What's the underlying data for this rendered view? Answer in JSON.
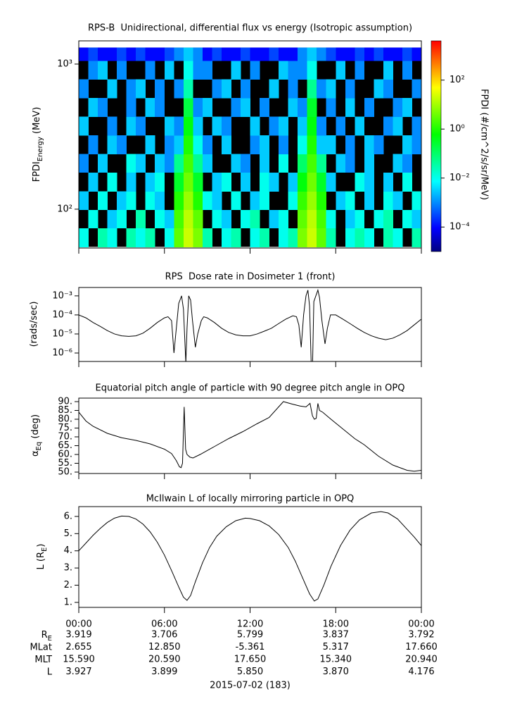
{
  "chart_data": [
    {
      "type": "heatmap",
      "title": "RPS-B  Unidirectional, differential flux vs energy (Isotropic assumption)",
      "ylabel": [
        {
          "text": "FPDI"
        },
        {
          "text": "Energy",
          "sub": true
        },
        {
          "text": " (MeV)"
        }
      ],
      "log_y": true,
      "xlim": [
        0,
        1440
      ],
      "ylim": [
        54,
        1445
      ],
      "yticks": [
        {
          "value": 100,
          "label": "10²"
        },
        {
          "value": 1000,
          "label": "10³"
        }
      ],
      "time_bins": [
        0,
        40,
        80,
        120,
        160,
        200,
        240,
        280,
        320,
        360,
        400,
        440,
        480,
        520,
        560,
        600,
        640,
        680,
        720,
        760,
        800,
        840,
        880,
        920,
        960,
        1000,
        1040,
        1080,
        1120,
        1160,
        1200,
        1240,
        1280,
        1320,
        1360,
        1400,
        1440
      ],
      "energy_bins": [
        55,
        74,
        99,
        133,
        179,
        240,
        323,
        434,
        584,
        785,
        1056,
        1300
      ],
      "z": [
        [
          0.01,
          null,
          0.03,
          0.01,
          null,
          0.03,
          0.01,
          0.03,
          null,
          0.01,
          3,
          20,
          5,
          0.03,
          null,
          0.01,
          0.03,
          null,
          0.01,
          0.03,
          null,
          0.01,
          0.03,
          5,
          20,
          3,
          0.03,
          null,
          0.01,
          0.03,
          0.01,
          null,
          0.03,
          0.01,
          null,
          0.03
        ],
        [
          null,
          0.01,
          null,
          0.003,
          0.01,
          null,
          0.03,
          null,
          0.01,
          0.003,
          2,
          15,
          3,
          null,
          0.01,
          0.003,
          null,
          0.01,
          0.03,
          null,
          0.003,
          0.01,
          null,
          3,
          15,
          2,
          0.01,
          null,
          0.003,
          0.01,
          null,
          0.01,
          0.03,
          null,
          0.01,
          0.003
        ],
        [
          0.003,
          null,
          0.01,
          null,
          0.003,
          0.01,
          null,
          0.01,
          0.003,
          null,
          1,
          8,
          1,
          0.01,
          0.003,
          null,
          0.01,
          null,
          0.003,
          0.01,
          null,
          null,
          0.01,
          1.5,
          8,
          1,
          null,
          0.003,
          0.01,
          null,
          0.003,
          null,
          0.01,
          0.003,
          null,
          0.01
        ],
        [
          null,
          0.003,
          null,
          0.01,
          null,
          0.003,
          null,
          0.003,
          0.01,
          null,
          0.3,
          4,
          0.3,
          null,
          0.003,
          0.01,
          null,
          0.003,
          null,
          0.01,
          0.003,
          null,
          0.003,
          0.5,
          4,
          0.3,
          0.003,
          null,
          null,
          0.01,
          0.003,
          null,
          0.003,
          null,
          0.01,
          null
        ],
        [
          0.001,
          null,
          0.003,
          null,
          null,
          0.01,
          0.003,
          null,
          0.003,
          0.001,
          0.05,
          2,
          0.05,
          0.003,
          null,
          null,
          0.003,
          0.001,
          null,
          0.003,
          null,
          0.01,
          null,
          0.1,
          2,
          0.05,
          null,
          0.003,
          0.001,
          null,
          0.003,
          null,
          null,
          0.003,
          0.001,
          null
        ],
        [
          null,
          0.001,
          null,
          0.003,
          0.001,
          null,
          null,
          0.003,
          null,
          0.001,
          0.003,
          1,
          0.01,
          0.001,
          null,
          0.003,
          null,
          null,
          0.001,
          0.003,
          null,
          0.001,
          null,
          0.01,
          1,
          0.003,
          0.003,
          null,
          0.001,
          null,
          0.003,
          0.001,
          null,
          null,
          0.003,
          0.001
        ],
        [
          0.003,
          null,
          null,
          0.001,
          null,
          0.003,
          0.001,
          null,
          null,
          0.003,
          0.001,
          0.5,
          0.003,
          null,
          0.003,
          0.001,
          null,
          null,
          0.003,
          null,
          0.001,
          0.003,
          null,
          0.003,
          0.5,
          0.001,
          null,
          0.001,
          null,
          0.003,
          null,
          null,
          0.001,
          0.003,
          null,
          0.001
        ],
        [
          null,
          0.003,
          0.001,
          null,
          null,
          0.001,
          null,
          0.003,
          0.001,
          null,
          null,
          0.2,
          0.001,
          0.003,
          null,
          null,
          0.001,
          0.003,
          null,
          0.001,
          null,
          null,
          0.003,
          0.001,
          0.3,
          null,
          0.001,
          null,
          0.003,
          null,
          0.001,
          null,
          null,
          0.001,
          0.003,
          null
        ],
        [
          0.001,
          null,
          null,
          0.003,
          null,
          0.001,
          0.003,
          null,
          0.001,
          null,
          0.001,
          0.03,
          null,
          null,
          0.001,
          0.003,
          null,
          0.001,
          null,
          null,
          0.003,
          null,
          0.001,
          null,
          0.05,
          0.001,
          0.003,
          null,
          0.001,
          null,
          null,
          0.003,
          0.001,
          null,
          null,
          0.001
        ],
        [
          null,
          0.001,
          0.003,
          null,
          0.001,
          null,
          null,
          0.001,
          null,
          0.003,
          null,
          0.01,
          0.001,
          0.001,
          null,
          null,
          0.003,
          null,
          0.001,
          null,
          null,
          0.003,
          0.001,
          0.001,
          0.01,
          null,
          null,
          0.003,
          null,
          0.001,
          null,
          null,
          0.003,
          null,
          0.001,
          null
        ],
        [
          0.0001,
          0.0003,
          0.0001,
          0.0001,
          0.0003,
          0.0001,
          0.0003,
          0.0001,
          0.0001,
          0.0003,
          0.001,
          0.003,
          0.001,
          0.0001,
          0.0003,
          0.0001,
          0.0001,
          0.0003,
          0.0001,
          0.0001,
          0.0003,
          0.0001,
          0.0001,
          0.001,
          0.003,
          0.001,
          0.0003,
          0.0001,
          0.0001,
          0.0003,
          0.0001,
          0.0003,
          0.0001,
          0.0001,
          0.0003,
          0.0001
        ]
      ],
      "nodata_color": "#000000",
      "colorbar": {
        "label": "FPDI (#/cm^2/s/sr/MeV)",
        "log": true,
        "zlim": [
          1e-05,
          4000
        ],
        "zticks": [
          {
            "value": 0.0001,
            "label": "10⁻⁴"
          },
          {
            "value": 0.01,
            "label": "10⁻²"
          },
          {
            "value": 1,
            "label": "10⁰"
          },
          {
            "value": 100,
            "label": "10²"
          }
        ],
        "colormap": [
          "#000080",
          "#0000ff",
          "#0080ff",
          "#00ffff",
          "#00ff80",
          "#00ff00",
          "#80ff00",
          "#ffff00",
          "#ff8000",
          "#ff0000"
        ]
      }
    },
    {
      "type": "line",
      "title": "RPS  Dose rate in Dosimeter 1 (front)",
      "ylabel": [
        {
          "text": "(rads/sec)"
        }
      ],
      "log_y": true,
      "xlim": [
        0,
        1440
      ],
      "ylim": [
        3.6e-07,
        0.00275
      ],
      "yticks": [
        {
          "value": 1e-06,
          "label": "10⁻⁶"
        },
        {
          "value": 1e-05,
          "label": "10⁻⁵"
        },
        {
          "value": 0.0001,
          "label": "10⁻⁴"
        },
        {
          "value": 0.001,
          "label": "10⁻³"
        }
      ],
      "color": "#000000",
      "x": [
        0,
        30,
        60,
        90,
        120,
        150,
        180,
        210,
        240,
        270,
        300,
        330,
        360,
        375,
        390,
        400,
        410,
        420,
        432,
        440,
        446,
        450,
        455,
        462,
        470,
        478,
        490,
        500,
        515,
        525,
        540,
        570,
        600,
        630,
        660,
        690,
        720,
        750,
        780,
        810,
        840,
        870,
        900,
        915,
        925,
        935,
        945,
        955,
        963,
        970,
        978,
        982,
        988,
        1005,
        1012,
        1022,
        1035,
        1045,
        1058,
        1080,
        1110,
        1140,
        1170,
        1200,
        1230,
        1260,
        1290,
        1320,
        1350,
        1380,
        1410,
        1440
      ],
      "values": [
        0.0001,
        7e-05,
        4e-05,
        2.5e-05,
        1.5e-05,
        1e-05,
        8e-06,
        7.5e-06,
        8e-06,
        1.1e-05,
        2e-05,
        4e-05,
        7e-05,
        8e-05,
        5e-05,
        1e-06,
        2e-05,
        0.0004,
        0.001,
        0.0002,
        4e-06,
        3e-07,
        2e-05,
        0.001,
        0.0006,
        5e-05,
        2e-06,
        1e-05,
        5e-05,
        8e-05,
        7e-05,
        4e-05,
        2e-05,
        1.2e-05,
        9e-06,
        8e-06,
        8e-06,
        1e-05,
        1.4e-05,
        2e-05,
        3.5e-05,
        6e-05,
        9e-05,
        8e-05,
        3e-05,
        2e-06,
        0.0001,
        0.001,
        0.002,
        0.0003,
        1e-07,
        1e-07,
        0.0005,
        0.002,
        0.0008,
        5e-05,
        3e-06,
        2e-05,
        0.0001,
        0.0001,
        6e-05,
        3.5e-05,
        2e-05,
        1.2e-05,
        8e-06,
        6e-06,
        5e-06,
        6e-06,
        9e-06,
        1.5e-05,
        3e-05,
        6e-05
      ]
    },
    {
      "type": "line",
      "title": "Equatorial pitch angle of particle with 90 degree pitch angle in OPQ",
      "ylabel": [
        {
          "text": "α"
        },
        {
          "text": "Eq",
          "sub": true
        },
        {
          "text": " (deg)"
        }
      ],
      "xlim": [
        0,
        1440
      ],
      "ylim": [
        49.2,
        92
      ],
      "yticks": [
        {
          "value": 50,
          "label": "50."
        },
        {
          "value": 55,
          "label": "55."
        },
        {
          "value": 60,
          "label": "60."
        },
        {
          "value": 65,
          "label": "65."
        },
        {
          "value": 70,
          "label": "70."
        },
        {
          "value": 75,
          "label": "75."
        },
        {
          "value": 80,
          "label": "80."
        },
        {
          "value": 85,
          "label": "85."
        },
        {
          "value": 90,
          "label": "90."
        }
      ],
      "color": "#000000",
      "x": [
        0,
        30,
        60,
        120,
        180,
        240,
        300,
        360,
        390,
        410,
        423,
        430,
        436,
        443,
        449,
        455,
        467,
        480,
        510,
        570,
        630,
        690,
        750,
        800,
        860,
        900,
        930,
        955,
        972,
        982,
        990,
        998,
        1005,
        1012,
        1025,
        1060,
        1110,
        1160,
        1200,
        1260,
        1320,
        1380,
        1410,
        1440
      ],
      "values": [
        84,
        79,
        76,
        72,
        69.5,
        68,
        66,
        63,
        60.5,
        56.5,
        53,
        52.5,
        55,
        87,
        63,
        60,
        58.5,
        58,
        60,
        64.5,
        69,
        73,
        77.5,
        81,
        90,
        88.5,
        87.5,
        87,
        89,
        82,
        80,
        80.5,
        89,
        85,
        84,
        80,
        74.5,
        69,
        65.5,
        59,
        54,
        51,
        50.5,
        51
      ]
    },
    {
      "type": "line",
      "title": "McIlwain L of locally mirroring particle in OPQ",
      "ylabel": [
        {
          "text": "L (R"
        },
        {
          "text": "E",
          "sub": true
        },
        {
          "text": ")"
        }
      ],
      "xlim": [
        0,
        1440
      ],
      "ylim": [
        0.71,
        6.57
      ],
      "yticks": [
        {
          "value": 1,
          "label": "1."
        },
        {
          "value": 2,
          "label": "2."
        },
        {
          "value": 3,
          "label": "3."
        },
        {
          "value": 4,
          "label": "4."
        },
        {
          "value": 5,
          "label": "5."
        },
        {
          "value": 6,
          "label": "6."
        }
      ],
      "xticks": [
        {
          "value": 0,
          "label": "00:00"
        },
        {
          "value": 360,
          "label": "06:00"
        },
        {
          "value": 720,
          "label": "12:00"
        },
        {
          "value": 1080,
          "label": "18:00"
        },
        {
          "value": 1440,
          "label": "00:00"
        }
      ],
      "color": "#000000",
      "x": [
        0,
        30,
        60,
        90,
        120,
        150,
        180,
        210,
        240,
        270,
        300,
        330,
        360,
        390,
        420,
        440,
        455,
        470,
        490,
        520,
        550,
        580,
        620,
        660,
        700,
        720,
        760,
        800,
        840,
        880,
        910,
        940,
        970,
        990,
        1005,
        1030,
        1060,
        1100,
        1140,
        1180,
        1230,
        1270,
        1300,
        1340,
        1380,
        1410,
        1440
      ],
      "values": [
        4.0,
        4.45,
        4.9,
        5.3,
        5.65,
        5.9,
        6.02,
        6.0,
        5.85,
        5.55,
        5.1,
        4.5,
        3.75,
        2.85,
        1.9,
        1.3,
        1.12,
        1.4,
        2.2,
        3.3,
        4.2,
        4.85,
        5.4,
        5.75,
        5.9,
        5.88,
        5.75,
        5.45,
        4.95,
        4.2,
        3.4,
        2.45,
        1.5,
        1.08,
        1.2,
        2.0,
        3.1,
        4.3,
        5.2,
        5.8,
        6.2,
        6.28,
        6.2,
        5.85,
        5.25,
        4.8,
        4.3
      ]
    }
  ],
  "ephemeris": {
    "rows": [
      {
        "label": [
          {
            "text": "R"
          },
          {
            "text": "E",
            "sub": true
          }
        ],
        "values": [
          "3.919",
          "3.706",
          "5.799",
          "3.837",
          "3.792"
        ]
      },
      {
        "label": [
          {
            "text": "MLat"
          }
        ],
        "values": [
          "2.655",
          "12.850",
          "-5.361",
          "5.317",
          "17.660"
        ]
      },
      {
        "label": [
          {
            "text": "MLT"
          }
        ],
        "values": [
          "15.590",
          "20.590",
          "17.650",
          "15.340",
          "20.940"
        ]
      },
      {
        "label": [
          {
            "text": "L"
          }
        ],
        "values": [
          "3.927",
          "3.899",
          "5.850",
          "3.870",
          "4.176"
        ]
      }
    ],
    "date": "2015-07-02 (183)"
  }
}
